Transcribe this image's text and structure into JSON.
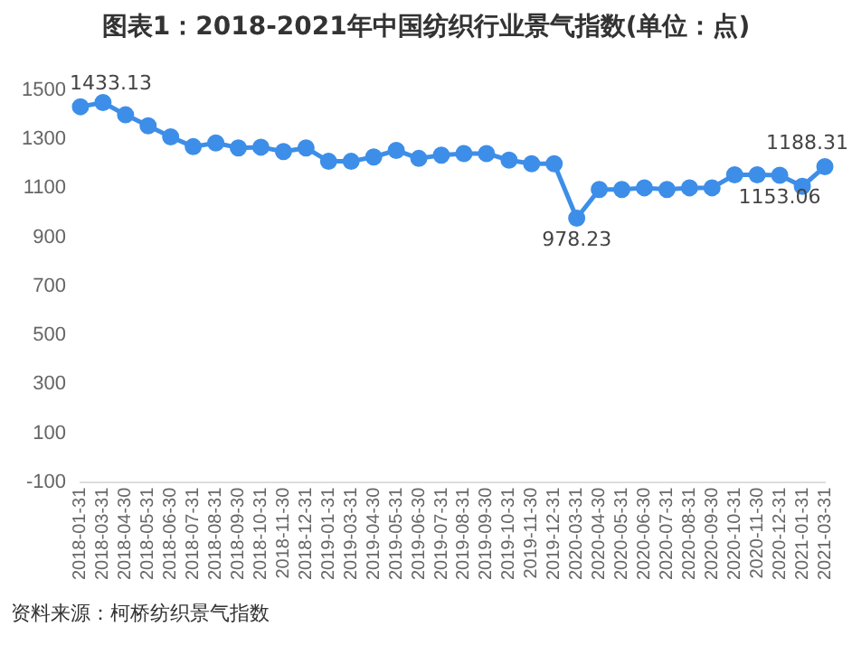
{
  "chart_data": {
    "type": "line",
    "title": "图表1：2018-2021年中国纺织行业景气指数(单位：点)",
    "categories": [
      "2018-01-31",
      "2018-03-31",
      "2018-04-30",
      "2018-05-31",
      "2018-06-30",
      "2018-07-31",
      "2018-08-31",
      "2018-09-30",
      "2018-10-31",
      "2018-11-30",
      "2018-12-31",
      "2019-01-31",
      "2019-03-31",
      "2019-04-30",
      "2019-05-31",
      "2019-06-30",
      "2019-07-31",
      "2019-08-31",
      "2019-09-30",
      "2019-10-31",
      "2019-11-30",
      "2019-12-31",
      "2020-03-31",
      "2020-04-30",
      "2020-05-31",
      "2020-06-30",
      "2020-07-31",
      "2020-08-31",
      "2020-09-30",
      "2020-10-31",
      "2020-11-30",
      "2020-12-31",
      "2021-01-31",
      "2021-03-31"
    ],
    "series": [
      {
        "color": "#3d8ee8",
        "values": [
          1433.13,
          1450,
          1400,
          1355,
          1310,
          1270,
          1285,
          1265,
          1268,
          1250,
          1265,
          1210,
          1210,
          1228,
          1255,
          1222,
          1235,
          1242,
          1242,
          1215,
          1200,
          1200,
          978.23,
          1095,
          1095,
          1102,
          1095,
          1102,
          1102,
          1155,
          1155,
          1153.06,
          1108,
          1188.31
        ]
      }
    ],
    "ylim": [
      -100,
      1500
    ],
    "yticks": [
      -100,
      100,
      300,
      500,
      700,
      900,
      1100,
      1300,
      1500
    ],
    "grid": false,
    "legend": false,
    "marker": "circle",
    "line_style": "solid",
    "annotations": [
      {
        "text": "1433.13",
        "x": "2018-01-31",
        "y": 1433.13
      },
      {
        "text": "978.23",
        "x": "2020-03-31",
        "y": 978.23
      },
      {
        "text": "1153.06",
        "x": "2020-12-31",
        "y": 1153.06
      },
      {
        "text": "1188.31",
        "x": "2021-03-31",
        "y": 1188.31
      },
      "资料来源：柯桥纺织景气指数"
    ]
  }
}
